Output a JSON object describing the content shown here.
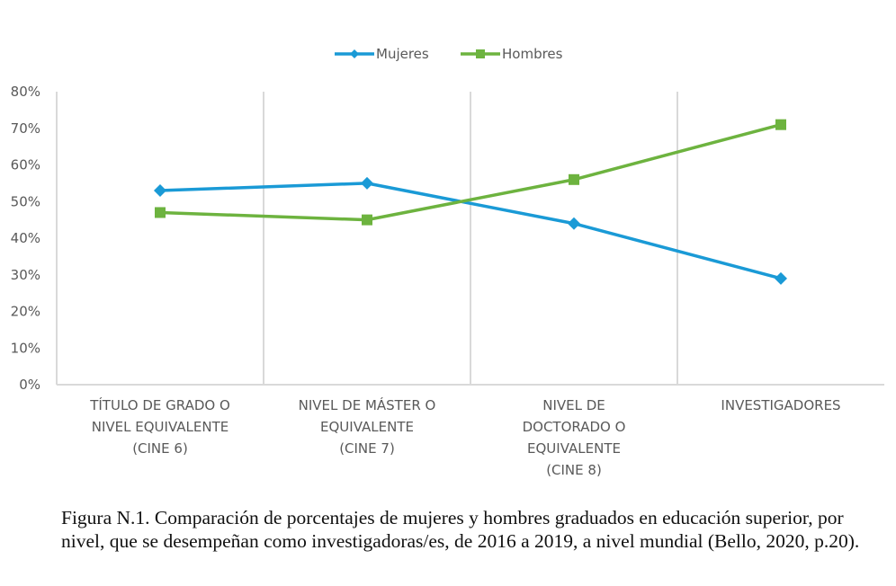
{
  "chart_data": {
    "type": "line",
    "title": "",
    "xlabel": "",
    "ylabel": "",
    "ylim": [
      0,
      80
    ],
    "yticks": [
      "0%",
      "10%",
      "20%",
      "30%",
      "40%",
      "50%",
      "60%",
      "70%",
      "80%"
    ],
    "grid": "vertical category separators",
    "legend": "top-center",
    "categories": [
      [
        "TÍTULO DE GRADO O",
        "NIVEL  EQUIVALENTE",
        "(CINE 6)"
      ],
      [
        "NIVEL DE MÁSTER O",
        "EQUIVALENTE",
        "(CINE 7)"
      ],
      [
        "NIVEL DE",
        "DOCTORADO O",
        "EQUIVALENTE",
        "(CINE 8)"
      ],
      [
        "INVESTIGADORES"
      ]
    ],
    "series": [
      {
        "name": "Mujeres",
        "color": "#1a9ad6",
        "marker": "diamond",
        "values": [
          53,
          55,
          44,
          29
        ]
      },
      {
        "name": "Hombres",
        "color": "#6db33f",
        "marker": "square",
        "values": [
          47,
          45,
          56,
          71
        ]
      }
    ]
  },
  "caption": "Figura N.1. Comparación de porcentajes de mujeres y hombres graduados en educación superior, por nivel, que se desempeñan como investigadoras/es, de 2016 a 2019, a nivel mundial (Bello, 2020, p.20)."
}
